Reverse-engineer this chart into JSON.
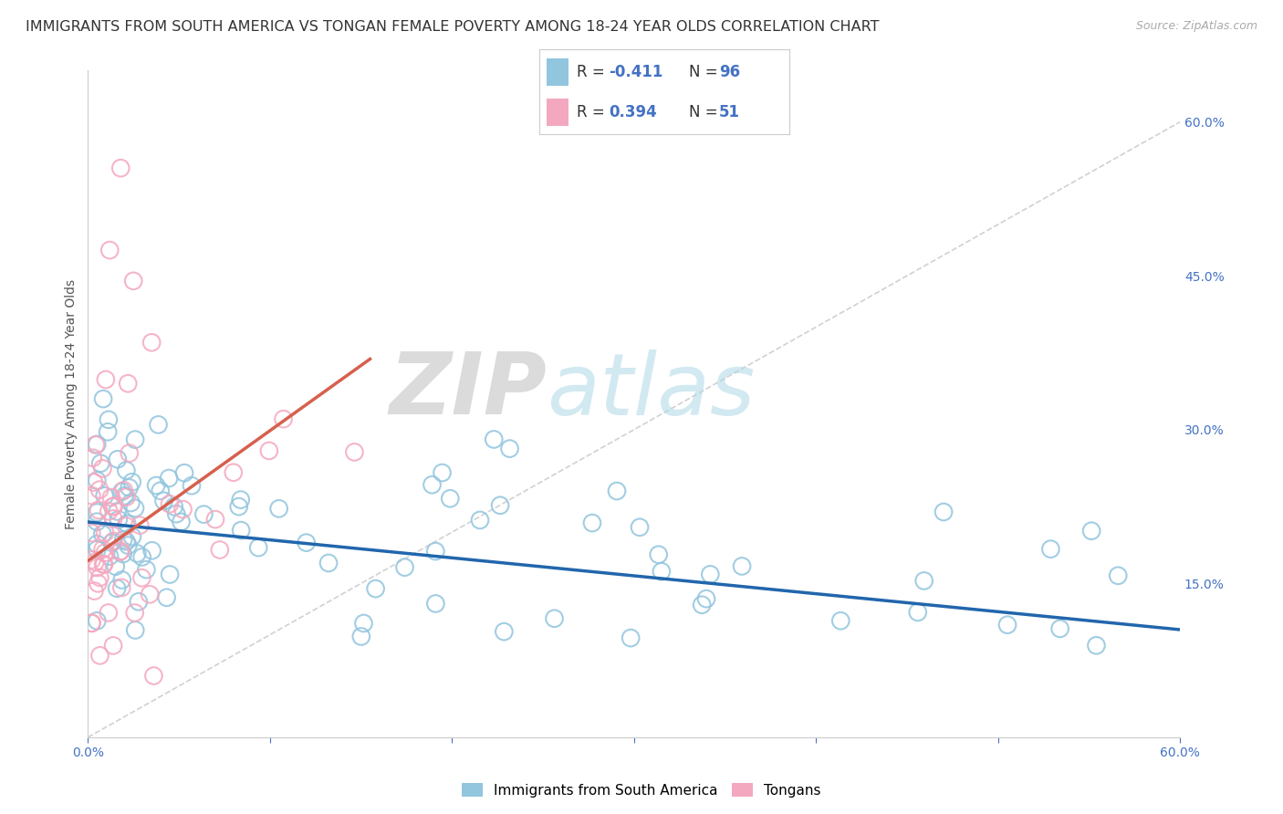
{
  "title": "IMMIGRANTS FROM SOUTH AMERICA VS TONGAN FEMALE POVERTY AMONG 18-24 YEAR OLDS CORRELATION CHART",
  "source": "Source: ZipAtlas.com",
  "ylabel": "Female Poverty Among 18-24 Year Olds",
  "xlim": [
    0.0,
    0.6
  ],
  "ylim": [
    0.0,
    0.65
  ],
  "ytick_labels_right": [
    "60.0%",
    "45.0%",
    "30.0%",
    "15.0%"
  ],
  "ytick_positions_right": [
    0.6,
    0.45,
    0.3,
    0.15
  ],
  "legend_label1": "Immigrants from South America",
  "legend_label2": "Tongans",
  "color_blue": "#92c5de",
  "color_pink": "#f4a8bf",
  "color_blue_line": "#2166ac",
  "color_pink_line": "#d6604d",
  "color_text_blue": "#4472C4",
  "diagonal_color": "#cccccc",
  "background": "#ffffff",
  "R1": -0.411,
  "N1": 96,
  "R2": 0.394,
  "N2": 51,
  "watermark_zip": "ZIP",
  "watermark_atlas": "atlas",
  "title_fontsize": 11.5,
  "axis_label_fontsize": 10,
  "tick_fontsize": 10,
  "legend_fontsize": 12
}
